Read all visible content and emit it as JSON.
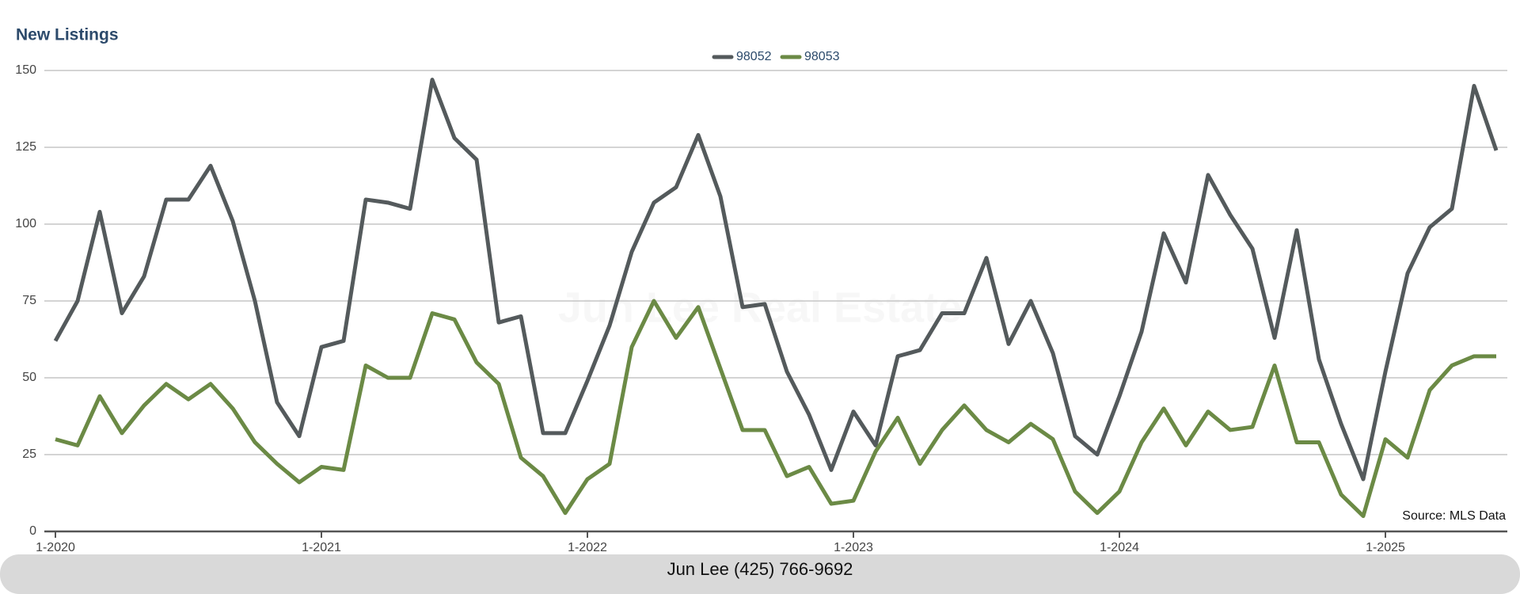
{
  "chart_data": {
    "type": "line",
    "title": "New Listings",
    "watermark": "Jun Lee Real Estate",
    "source": "Source: MLS Data",
    "footer": "Jun Lee (425) 766-9692",
    "categories": [
      "1-2020",
      null,
      null,
      null,
      null,
      null,
      null,
      null,
      null,
      null,
      null,
      null,
      "1-2021",
      null,
      null,
      null,
      null,
      null,
      null,
      null,
      null,
      null,
      null,
      null,
      "1-2022",
      null,
      null,
      null,
      null,
      null,
      null,
      null,
      null,
      null,
      null,
      null,
      "1-2023",
      null,
      null,
      null,
      null,
      null,
      null,
      null,
      null,
      null,
      null,
      null,
      "1-2024",
      null,
      null,
      null,
      null,
      null,
      null,
      null,
      null,
      null,
      null,
      null,
      "1-2025",
      null,
      null,
      null,
      null,
      null
    ],
    "series": [
      {
        "name": "98052",
        "color": "#545a5c",
        "values": [
          62,
          75,
          104,
          71,
          83,
          108,
          108,
          119,
          101,
          75,
          42,
          31,
          60,
          62,
          108,
          107,
          105,
          147,
          128,
          121,
          68,
          70,
          32,
          32,
          49,
          67,
          91,
          107,
          112,
          129,
          109,
          73,
          74,
          52,
          38,
          20,
          39,
          28,
          57,
          59,
          71,
          71,
          89,
          61,
          75,
          58,
          31,
          25,
          44,
          65,
          97,
          81,
          116,
          103,
          92,
          63,
          98,
          56,
          35,
          17,
          52,
          84,
          99,
          105,
          145,
          124
        ]
      },
      {
        "name": "98053",
        "color": "#6b8a45",
        "values": [
          30,
          28,
          44,
          32,
          41,
          48,
          43,
          48,
          40,
          29,
          22,
          16,
          21,
          20,
          54,
          50,
          50,
          71,
          69,
          55,
          48,
          24,
          18,
          6,
          17,
          22,
          60,
          75,
          63,
          73,
          53,
          33,
          33,
          18,
          21,
          9,
          10,
          26,
          37,
          22,
          33,
          41,
          33,
          29,
          35,
          30,
          13,
          6,
          13,
          29,
          40,
          28,
          39,
          33,
          34,
          54,
          29,
          29,
          12,
          5,
          30,
          24,
          46,
          54,
          57,
          57
        ]
      }
    ],
    "ylim": [
      0,
      150
    ],
    "yticks": [
      0,
      25,
      50,
      75,
      100,
      125,
      150
    ],
    "grid": true,
    "legend": "top"
  }
}
